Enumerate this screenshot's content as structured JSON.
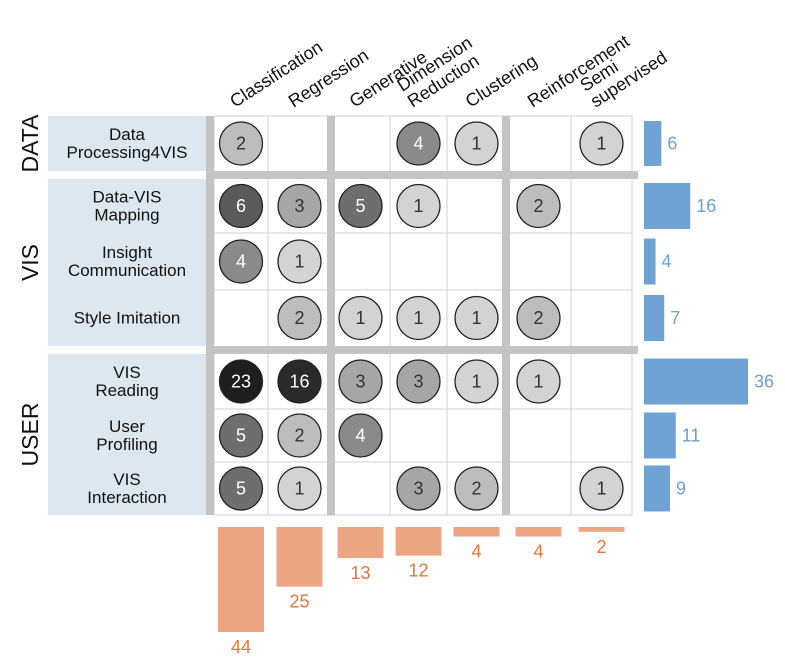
{
  "chart_data": {
    "type": "heatmap",
    "columns": [
      "Classification",
      "Regression",
      "Generative",
      "Dimension Reduction",
      "Clustering",
      "Reinforcement",
      "Semi supervised"
    ],
    "column_label_lines": [
      [
        "Classification"
      ],
      [
        "Regression"
      ],
      [
        "Generative"
      ],
      [
        "Dimension",
        "Reduction"
      ],
      [
        "Clustering"
      ],
      [
        "Reinforcement"
      ],
      [
        "Semi",
        "supervised"
      ]
    ],
    "groups": [
      {
        "name": "DATA",
        "rows": [
          0
        ]
      },
      {
        "name": "VIS",
        "rows": [
          1,
          2,
          3
        ]
      },
      {
        "name": "USER",
        "rows": [
          4,
          5,
          6
        ]
      }
    ],
    "rows": [
      {
        "label": "Data Processing4VIS",
        "lines": [
          "Data",
          "Processing4VIS"
        ],
        "values": [
          2,
          null,
          null,
          4,
          1,
          null,
          1
        ],
        "total": 6
      },
      {
        "label": "Data-VIS Mapping",
        "lines": [
          "Data-VIS",
          "Mapping"
        ],
        "values": [
          6,
          3,
          5,
          1,
          null,
          2,
          null
        ],
        "total": 16
      },
      {
        "label": "Insight Communication",
        "lines": [
          "Insight",
          "Communication"
        ],
        "values": [
          4,
          1,
          null,
          null,
          null,
          null,
          null
        ],
        "total": 4
      },
      {
        "label": "Style Imitation",
        "lines": [
          "Style Imitation"
        ],
        "values": [
          null,
          2,
          1,
          1,
          1,
          2,
          null
        ],
        "total": 7
      },
      {
        "label": "VIS Reading",
        "lines": [
          "VIS",
          "Reading"
        ],
        "values": [
          23,
          16,
          3,
          3,
          1,
          1,
          null
        ],
        "total": 36
      },
      {
        "label": "User Profiling",
        "lines": [
          "User",
          "Profiling"
        ],
        "values": [
          5,
          2,
          4,
          null,
          null,
          null,
          null
        ],
        "total": 11
      },
      {
        "label": "VIS Interaction",
        "lines": [
          "VIS",
          "Interaction"
        ],
        "values": [
          5,
          1,
          null,
          3,
          2,
          null,
          1
        ],
        "total": 9
      }
    ],
    "column_totals": [
      44,
      25,
      13,
      12,
      4,
      4,
      2
    ],
    "colors": {
      "row_bar": "#6fa3d4",
      "row_total_text": "#6f9fd2",
      "column_bar": "#eda684",
      "column_total_text": "#e0763e",
      "label_bg": "#dce7f0",
      "separator": "#c4c4c4",
      "grid": "#d0d0d0",
      "circle_stroke": "#222222",
      "circle_scale": [
        "#d3d3d3",
        "#bdbdbd",
        "#a6a6a6",
        "#8a8a8a",
        "#6e6e6e",
        "#5a5a5a",
        "#2a2a2a",
        "#1e1e1e"
      ]
    }
  }
}
